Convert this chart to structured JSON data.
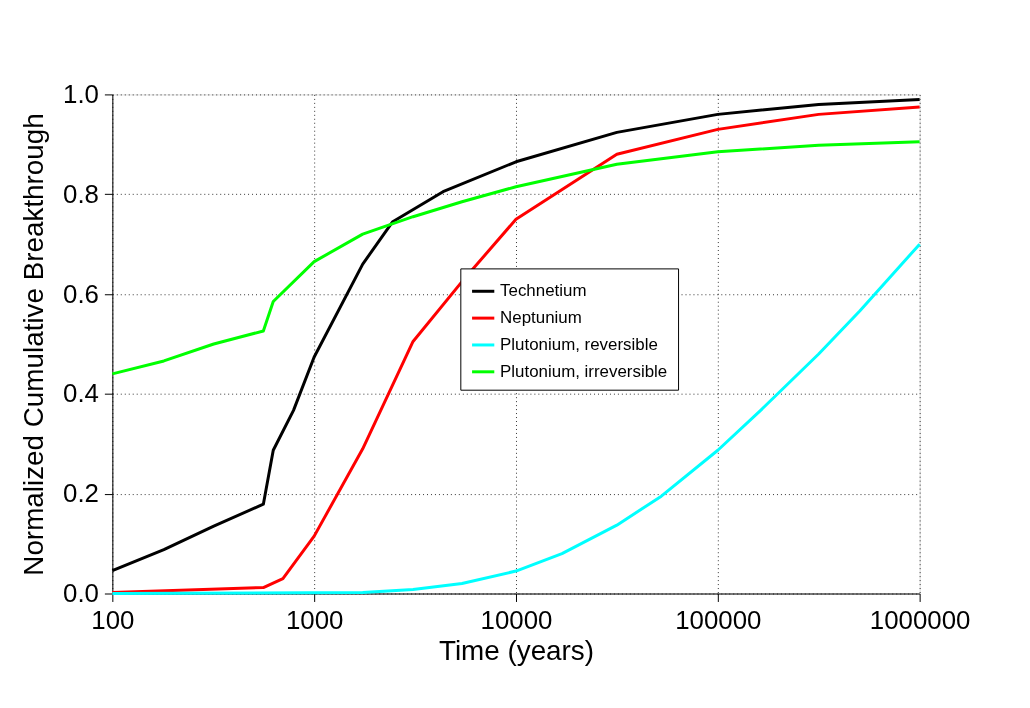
{
  "chart_data": {
    "type": "line",
    "xlabel": "Time (years)",
    "ylabel": "Normalized Cumulative Breakthrough",
    "xlim": [
      100,
      1000000
    ],
    "xticks": [
      100,
      1000,
      10000,
      100000,
      1000000
    ],
    "ylim": [
      0,
      1
    ],
    "yticks": [
      {
        "value": 0,
        "label": "0.0"
      },
      {
        "value": 0.2,
        "label": "0.2"
      },
      {
        "value": 0.4,
        "label": "0.4"
      },
      {
        "value": 0.6,
        "label": "0.6"
      },
      {
        "value": 0.8,
        "label": "0.8"
      },
      {
        "value": 1,
        "label": "1.0"
      }
    ],
    "log": "x",
    "grid": true,
    "legend": "right",
    "marker": "none",
    "line_style": "solid",
    "series": [
      {
        "name": "Technetium",
        "color": "#000000",
        "x": [
          100,
          180,
          318,
          560,
          627,
          790,
          1000,
          1740,
          2450,
          4350,
          10000,
          31600,
          100000,
          316000,
          1000000
        ],
        "values": [
          0.046,
          0.088,
          0.135,
          0.179,
          0.287,
          0.367,
          0.474,
          0.66,
          0.745,
          0.805,
          0.865,
          0.924,
          0.96,
          0.98,
          0.99
        ]
      },
      {
        "name": "Neptunium",
        "color": "#ff0000",
        "x": [
          100,
          560,
          700,
          1000,
          1740,
          3090,
          5400,
          10000,
          31600,
          100000,
          316000,
          1000000
        ],
        "values": [
          0.002,
          0.012,
          0.03,
          0.115,
          0.29,
          0.505,
          0.625,
          0.75,
          0.88,
          0.93,
          0.96,
          0.975
        ]
      },
      {
        "name": "Plutonium, reversible",
        "color": "#00ffff",
        "x": [
          100,
          1740,
          3090,
          5400,
          10000,
          16900,
          31600,
          52500,
          100000,
          163000,
          316000,
          505000,
          1000000
        ],
        "values": [
          0,
          0.002,
          0.008,
          0.02,
          0.045,
          0.08,
          0.137,
          0.195,
          0.287,
          0.367,
          0.48,
          0.566,
          0.7
        ]
      },
      {
        "name": "Plutonium, irreversible",
        "color": "#00ff00",
        "x": [
          100,
          180,
          318,
          560,
          627,
          1000,
          1740,
          3090,
          5400,
          10000,
          31600,
          100000,
          316000,
          1000000
        ],
        "values": [
          0.44,
          0.466,
          0.5,
          0.526,
          0.585,
          0.665,
          0.72,
          0.755,
          0.785,
          0.815,
          0.86,
          0.885,
          0.898,
          0.905
        ]
      }
    ]
  }
}
